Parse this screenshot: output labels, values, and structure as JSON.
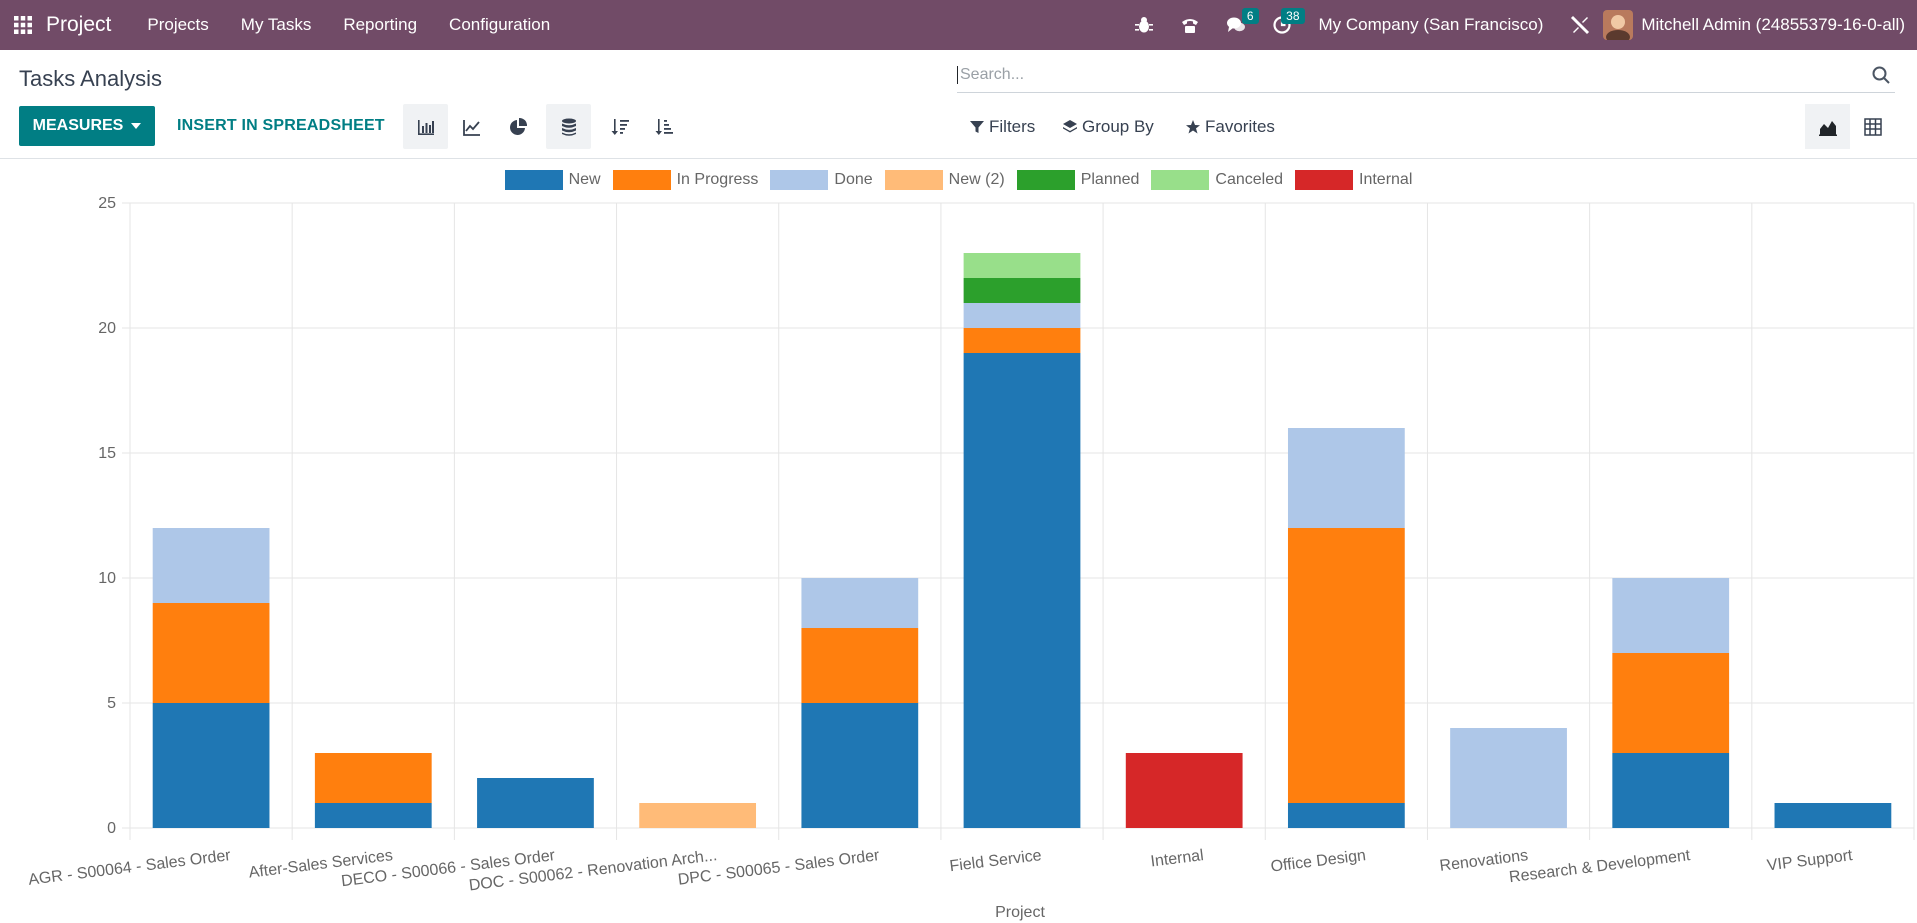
{
  "navbar": {
    "brand": "Project",
    "menu": [
      "Projects",
      "My Tasks",
      "Reporting",
      "Configuration"
    ],
    "messages_count": "6",
    "activities_count": "38",
    "company": "My Company (San Francisco)",
    "user": "Mitchell Admin (24855379-16-0-all)"
  },
  "control": {
    "title": "Tasks Analysis",
    "search_placeholder": "Search...",
    "measures": "MEASURES",
    "insert_spreadsheet": "INSERT IN SPREADSHEET",
    "filters": "Filters",
    "group_by": "Group By",
    "favorites": "Favorites"
  },
  "chart_data": {
    "type": "bar",
    "stacked": true,
    "xlabel": "Project",
    "ylabel": "",
    "ylim": [
      0,
      25
    ],
    "yticks": [
      0,
      5,
      10,
      15,
      20,
      25
    ],
    "grid": true,
    "legend_position": "top",
    "categories": [
      "AGR - S00064 - Sales Order",
      "After-Sales Services",
      "DECO - S00066 - Sales Order",
      "DOC - S00062 - Renovation Arch...",
      "DPC - S00065 - Sales Order",
      "Field Service",
      "Internal",
      "Office Design",
      "Renovations",
      "Research & Development",
      "VIP Support"
    ],
    "series": [
      {
        "name": "New",
        "color": "#1f77b4",
        "values": [
          5,
          1,
          2,
          0,
          5,
          19,
          0,
          1,
          0,
          3,
          1
        ]
      },
      {
        "name": "In Progress",
        "color": "#ff7f0e",
        "values": [
          4,
          2,
          0,
          0,
          3,
          1,
          0,
          11,
          0,
          4,
          0
        ]
      },
      {
        "name": "Done",
        "color": "#aec7e8",
        "values": [
          3,
          0,
          0,
          0,
          2,
          1,
          0,
          4,
          4,
          3,
          0
        ]
      },
      {
        "name": "New (2)",
        "color": "#ffbb78",
        "values": [
          0,
          0,
          0,
          1,
          0,
          0,
          0,
          0,
          0,
          0,
          0
        ]
      },
      {
        "name": "Planned",
        "color": "#2ca02c",
        "values": [
          0,
          0,
          0,
          0,
          0,
          1,
          0,
          0,
          0,
          0,
          0
        ]
      },
      {
        "name": "Canceled",
        "color": "#98df8a",
        "values": [
          0,
          0,
          0,
          0,
          0,
          1,
          0,
          0,
          0,
          0,
          0
        ]
      },
      {
        "name": "Internal",
        "color": "#d62728",
        "values": [
          0,
          0,
          0,
          0,
          0,
          0,
          3,
          0,
          0,
          0,
          0
        ]
      }
    ]
  }
}
